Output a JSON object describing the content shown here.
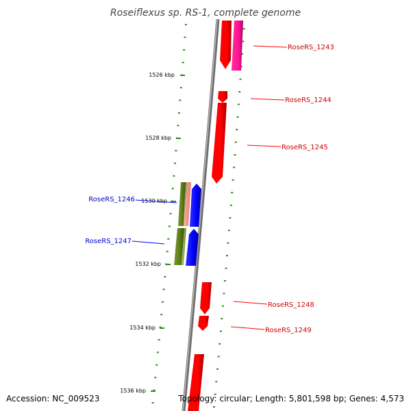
{
  "title": "Roseiflexus sp. RS-1, complete genome",
  "footer": {
    "accession": "Accession: NC_009523",
    "summary": "Topology: circular; Length: 5,801,598 bp; Genes: 4,573"
  },
  "colors": {
    "backbone": "#8c8c8c",
    "tick": "#2e8b1e",
    "forward_gene": "#ff0000",
    "forward_gene_alt": "#ff1493",
    "reverse_gene": "#0000ff",
    "reverse_gene_alt": "#556b2f",
    "forward_label": "#cc0000",
    "reverse_label": "#0000cc"
  },
  "scale_labels": [
    "1526 kbp",
    "1528 kbp",
    "1530 kbp",
    "1532 kbp",
    "1534 kbp",
    "1536 kbp"
  ],
  "forward_genes": [
    {
      "name": "RoseRS_1243"
    },
    {
      "name": "RoseRS_1244"
    },
    {
      "name": "RoseRS_1245"
    },
    {
      "name": "RoseRS_1248"
    },
    {
      "name": "RoseRS_1249"
    }
  ],
  "reverse_genes": [
    {
      "name": "RoseRS_1246"
    },
    {
      "name": "RoseRS_1247"
    }
  ]
}
